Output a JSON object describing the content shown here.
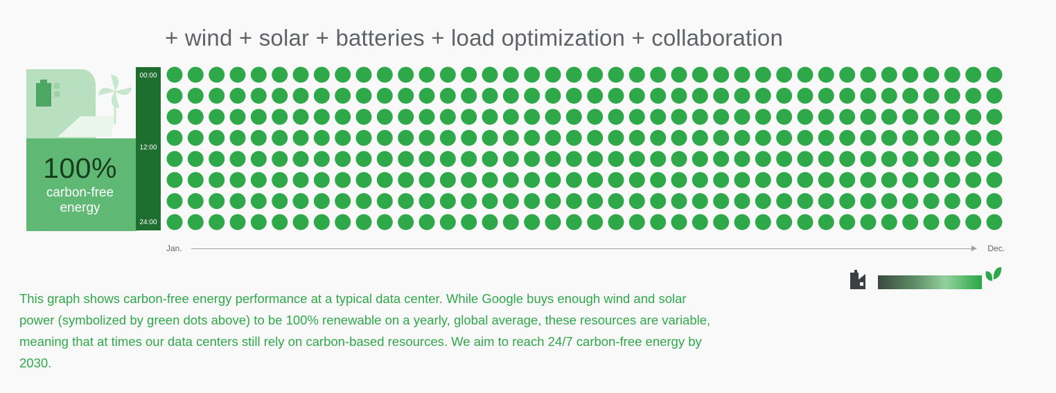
{
  "title": "+ wind + solar + batteries + load optimization + collaboration",
  "badge": {
    "percent": "100%",
    "label_line1": "carbon-free",
    "label_line2": "energy",
    "icons": [
      "battery-icon",
      "pinwheel-icon",
      "solar-panel-icon"
    ]
  },
  "chart_data": {
    "type": "heatmap",
    "title": "",
    "y_tick_labels": [
      "00:00",
      "12:00",
      "24:00"
    ],
    "x_tick_labels": [
      "Jan.",
      "Dec."
    ],
    "rows": 8,
    "columns": 40,
    "fill_value": 1,
    "cell_color": "#2fa84a",
    "legend_low_icon": "factory-icon",
    "legend_high_icon": "leaf-icon",
    "legend_gradient": [
      "#3a4a3e",
      "#93d19f",
      "#28a745"
    ],
    "grid": false
  },
  "caption": "This graph shows carbon-free energy performance at a typical data center. While Google buys enough wind and solar power (symbolized by green dots above) to be 100% renewable on a yearly, global average, these resources are variable, meaning that at times our data centers still rely on carbon-based resources. We aim to reach 24/7 carbon-free energy by 2030.",
  "colors": {
    "accent": "#2fa84a",
    "dark_green": "#1e6e2f",
    "title_gray": "#5f6368"
  }
}
